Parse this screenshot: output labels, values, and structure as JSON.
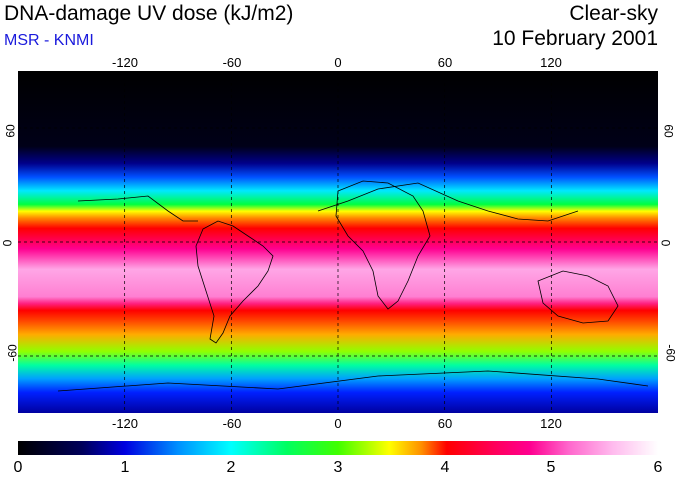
{
  "header": {
    "title": "DNA-damage UV dose (kJ/m2)",
    "subtitle": "MSR - KNMI",
    "sky": "Clear-sky",
    "date": "10 February 2001"
  },
  "map": {
    "lon_ticks": [
      "-120",
      "-60",
      "0",
      "60",
      "120"
    ],
    "lat_ticks": [
      "60",
      "0",
      "-60"
    ],
    "lon_values": [
      -120,
      -60,
      0,
      60,
      120
    ],
    "lat_values": [
      60,
      0,
      -60
    ],
    "lon_range": [
      -180,
      180
    ],
    "lat_range": [
      -90,
      90
    ]
  },
  "colorbar": {
    "labels": [
      "0",
      "1",
      "2",
      "3",
      "4",
      "5",
      "6"
    ],
    "values": [
      0,
      1,
      2,
      3,
      4,
      5,
      6
    ]
  },
  "colors": {
    "subtitle": "#1a1adc",
    "grid": "#000000"
  }
}
